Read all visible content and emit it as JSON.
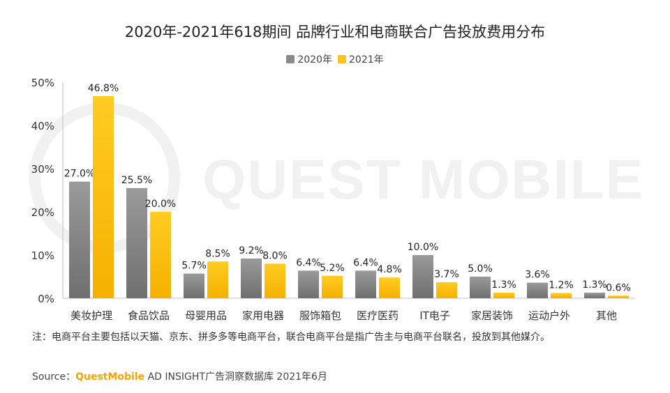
{
  "title": "2020年-2021年618期间 品牌行业和电商联合广告投放费用分布",
  "watermark": "QUEST MOBILE",
  "colors": {
    "s2020": "#8a8a8a",
    "s2021": "#ffc21a",
    "brand": "#f5a400"
  },
  "chart_data": {
    "type": "bar",
    "categories": [
      "美妆护理",
      "食品饮品",
      "母婴用品",
      "家用电器",
      "服饰箱包",
      "医疗医药",
      "IT电子",
      "家居装饰",
      "运动户外",
      "其他"
    ],
    "series": [
      {
        "name": "2020年",
        "values": [
          27.0,
          25.5,
          5.7,
          9.2,
          6.4,
          6.4,
          10.0,
          5.0,
          3.6,
          1.3
        ]
      },
      {
        "name": "2021年",
        "values": [
          46.8,
          20.0,
          8.5,
          8.0,
          5.2,
          4.8,
          3.7,
          1.3,
          1.2,
          0.6
        ]
      }
    ],
    "yticks": [
      "0%",
      "10%",
      "20%",
      "30%",
      "40%",
      "50%"
    ],
    "ylim": [
      0,
      50
    ],
    "value_suffix": "%",
    "legend": "top-center"
  },
  "note": "注：电商平台主要包括以天猫、京东、拼多多等电商平台，联合电商平台是指广告主与电商平台联名，投放到其他媒介。",
  "source": {
    "label": "Source：",
    "brand": "QuestMobile",
    "rest": " AD INSIGHT广告洞察数据库 2021年6月"
  }
}
